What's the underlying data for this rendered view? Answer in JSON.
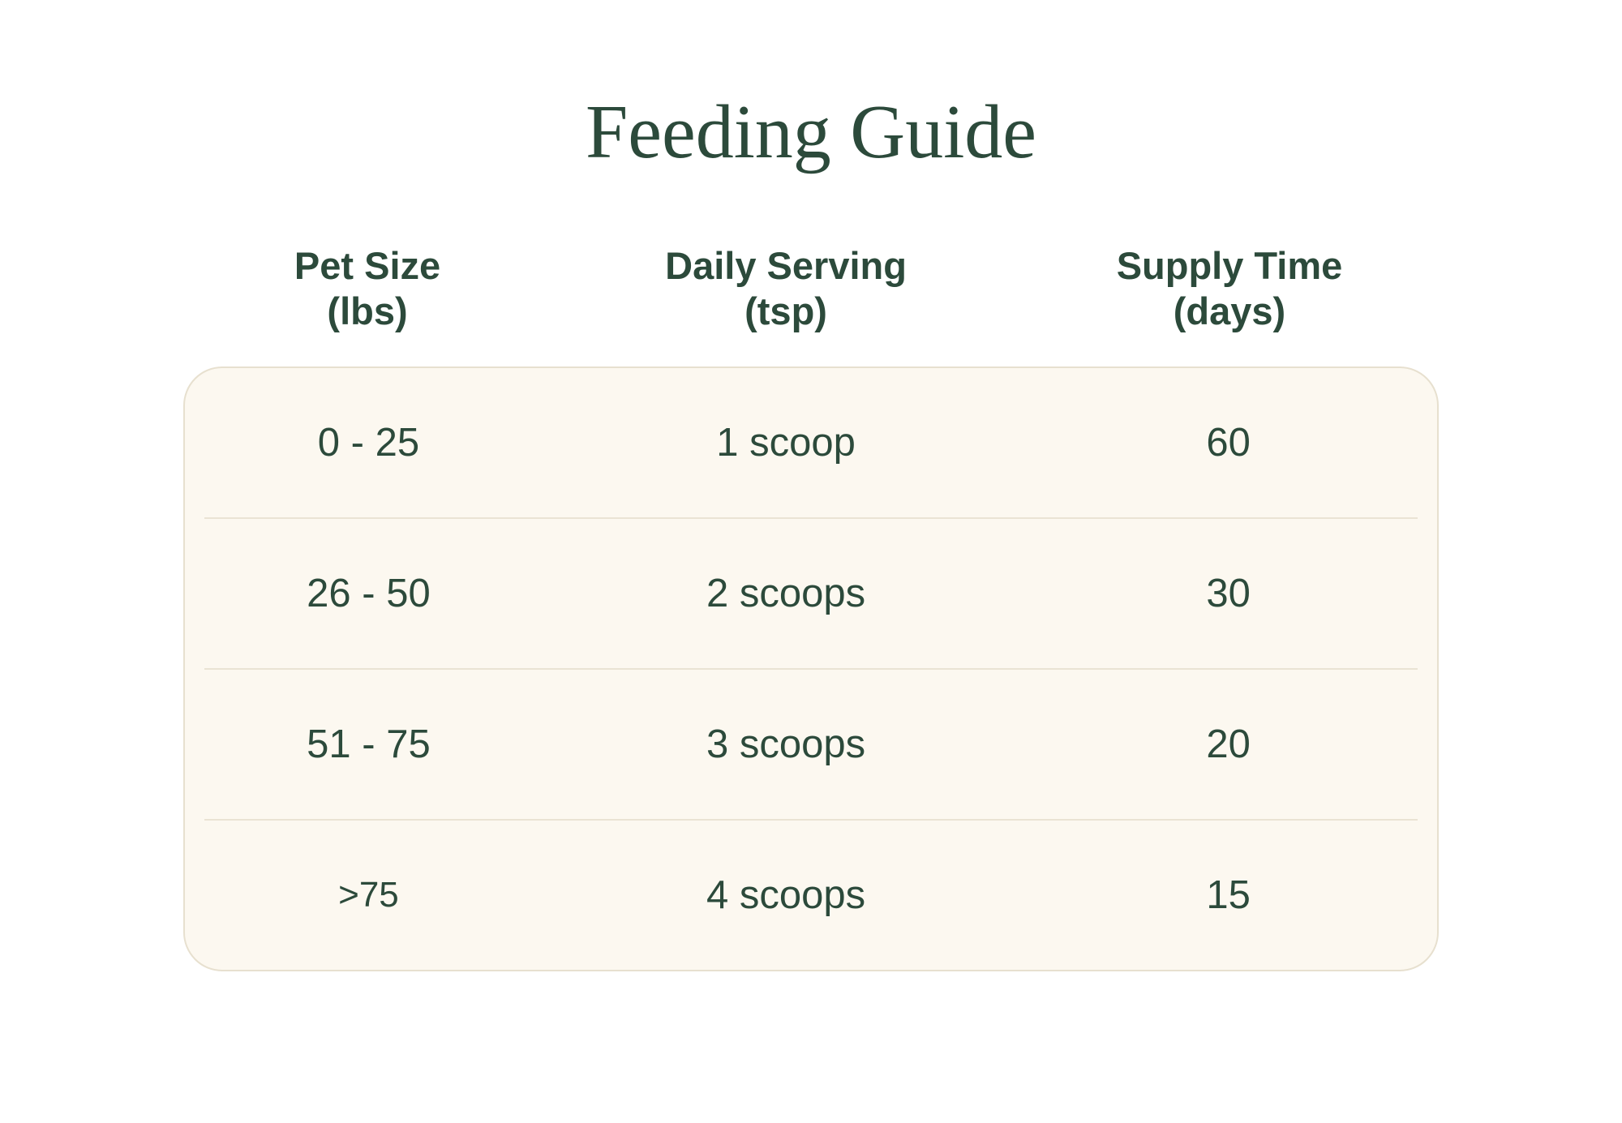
{
  "title": "Feeding Guide",
  "colors": {
    "text-green": "#2c4a3b",
    "card-bg": "#fcf8f0",
    "card-border": "#e7e0cf",
    "divider": "#eae3d4",
    "page-bg": "#ffffff"
  },
  "table": {
    "columns": [
      {
        "label": "Pet Size",
        "unit": "(lbs)"
      },
      {
        "label": "Daily Serving",
        "unit": "(tsp)"
      },
      {
        "label": "Supply Time",
        "unit": "(days)"
      }
    ],
    "rows": [
      {
        "pet_size": "0 - 25",
        "daily_serving": "1 scoop",
        "supply_time": "60"
      },
      {
        "pet_size": "26 - 50",
        "daily_serving": "2 scoops",
        "supply_time": "30"
      },
      {
        "pet_size": "51 - 75",
        "daily_serving": "3 scoops",
        "supply_time": "20"
      },
      {
        "pet_size": ">75",
        "daily_serving": "4 scoops",
        "supply_time": "15"
      }
    ]
  }
}
